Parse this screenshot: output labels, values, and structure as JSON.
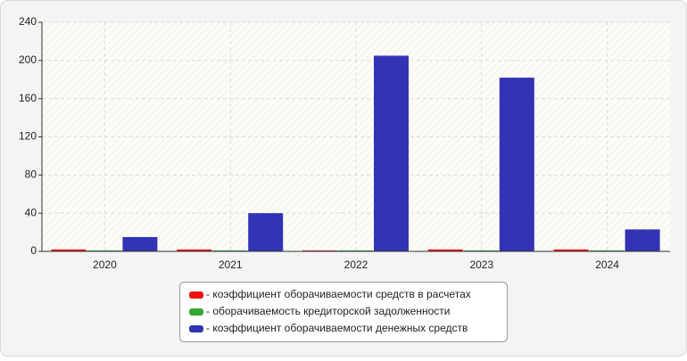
{
  "chart_data": {
    "type": "bar",
    "categories": [
      "2020",
      "2021",
      "2022",
      "2023",
      "2024"
    ],
    "series": [
      {
        "name": "- коэффициент оборачиваемости средств в расчетах",
        "color": "#ee1111",
        "values": [
          2,
          2,
          1,
          2,
          2
        ]
      },
      {
        "name": "- оборачиваемость кредиторской задолженности",
        "color": "#33aa33",
        "values": [
          1,
          1,
          1,
          1,
          1
        ]
      },
      {
        "name": "- коэффициент оборачиваемости денежных средств",
        "color": "#3333b5",
        "values": [
          15,
          40,
          205,
          182,
          23
        ]
      }
    ],
    "ylim": [
      0,
      240
    ],
    "yticks": [
      0,
      40,
      80,
      120,
      160,
      200,
      240
    ],
    "grid": true
  }
}
